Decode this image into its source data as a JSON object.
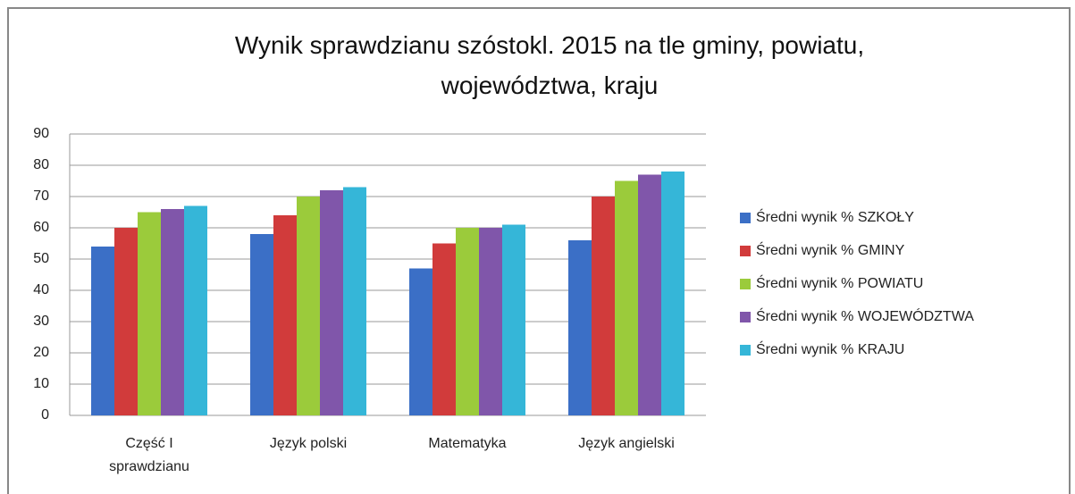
{
  "chart_data": {
    "type": "bar",
    "title": "Wynik sprawdzianu szóstokl. 2015 na tle gminy, powiatu, województwa, kraju",
    "categories": [
      "Część I sprawdzianu",
      "Język polski",
      "Matematyka",
      "Język angielski"
    ],
    "series": [
      {
        "name": "Średni wynik % SZKOŁY",
        "color": "#3b6fc6",
        "values": [
          54,
          58,
          47,
          56
        ]
      },
      {
        "name": "Średni wynik % GMINY",
        "color": "#d13b3b",
        "values": [
          60,
          64,
          55,
          70
        ]
      },
      {
        "name": "Średni wynik % POWIATU",
        "color": "#9bcb3b",
        "values": [
          65,
          70,
          60,
          75
        ]
      },
      {
        "name": "Średni wynik % WOJEWÓDZTWA",
        "color": "#8056aa",
        "values": [
          66,
          72,
          60,
          77
        ]
      },
      {
        "name": "Średni wynik % KRAJU",
        "color": "#35b6d8",
        "values": [
          67,
          73,
          61,
          78
        ]
      }
    ],
    "ylim": [
      0,
      90
    ],
    "yticks": [
      0,
      10,
      20,
      30,
      40,
      50,
      60,
      70,
      80,
      90
    ],
    "grid": true,
    "legend": "right"
  }
}
